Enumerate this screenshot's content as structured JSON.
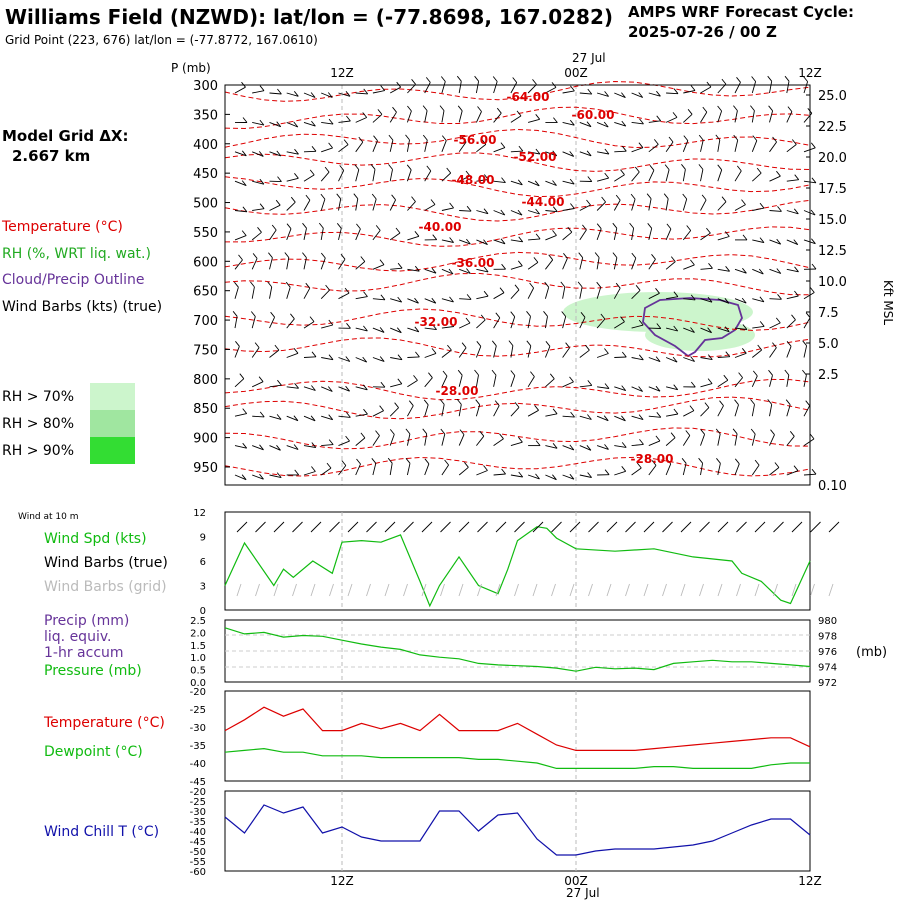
{
  "header": {
    "title": "Williams Field (NZWD):  lat/lon = (-77.8698, 167.0282)",
    "subtitle": "Grid Point (223, 676) lat/lon = (-77.8772, 167.0610)",
    "cycle_label": "AMPS WRF Forecast Cycle:",
    "cycle_value": "2025-07-26 / 00  Z"
  },
  "sidebar": {
    "grid_label": "Model Grid ΔX:",
    "grid_value": "2.667 km",
    "legend_temperature": "Temperature (°C)",
    "legend_rh": "RH (%, WRT liq. wat.)",
    "legend_cloud": "Cloud/Precip Outline",
    "legend_wind": "Wind Barbs (kts) (true)",
    "rh_70": "RH > 70%",
    "rh_80": "RH > 80%",
    "rh_90": "RH > 90%"
  },
  "colors": {
    "temperature": "#dd0000",
    "rh70": "#ccf5cc",
    "rh80": "#a0e6a0",
    "rh90": "#33dd33",
    "cloud": "#663399",
    "wind": "#000000",
    "series_green": "#11bb11",
    "series_red": "#dd0000",
    "series_blue": "#1111aa",
    "grid_barbs": "#bbbbbb"
  },
  "time_axis": {
    "top_labels": [
      "12Z",
      "00Z",
      "12Z"
    ],
    "date_label": "27 Jul",
    "bottom_labels": [
      "12Z",
      "00Z",
      "12Z"
    ]
  },
  "chart_data": [
    {
      "type": "area",
      "name": "cross-section",
      "ylabel_left": "P (mb)",
      "pressure_levels": [
        300,
        350,
        400,
        450,
        500,
        550,
        600,
        650,
        700,
        750,
        800,
        850,
        900,
        950
      ],
      "ylabel_right": "Kft MSL",
      "height_ticks": [
        "25.0",
        "22.5",
        "20.0",
        "17.5",
        "15.0",
        "12.5",
        "10.0",
        "7.5",
        "5.0",
        "2.5",
        "0.10"
      ],
      "temperature_labels": [
        "-64.00",
        "-60.00",
        "-56.00",
        "-52.00",
        "-48.00",
        "-44.00",
        "-40.00",
        "-36.00",
        "-32.00",
        "-28.00",
        "-28.00"
      ],
      "grid": true
    },
    {
      "type": "line",
      "name": "wind at 10 m",
      "corner_label": "Wind at 10 m",
      "legend": [
        "Wind Spd (kts)",
        "Wind Barbs (true)",
        "Wind Barbs (grid)"
      ],
      "y_ticks": [
        "12",
        "9",
        "6",
        "3",
        "0"
      ],
      "ylim": [
        0,
        12
      ],
      "series": [
        {
          "name": "Wind Spd (kts)",
          "x_hours": [
            0,
            2,
            5,
            6,
            7,
            9,
            11,
            12,
            14,
            16,
            18,
            20,
            21,
            22,
            24,
            26,
            28,
            29,
            30,
            32,
            33,
            34,
            36,
            40,
            44,
            48,
            52,
            53,
            55,
            57,
            58,
            60
          ],
          "values": [
            3,
            8.2,
            3,
            5,
            4,
            6,
            4.5,
            8.3,
            8.5,
            8.3,
            9.2,
            3.5,
            0.5,
            3,
            6.5,
            3,
            2,
            5,
            8.5,
            10.2,
            10,
            8.8,
            7.5,
            7.2,
            7.5,
            6.5,
            6,
            4.5,
            3.5,
            1.2,
            0.8,
            6
          ]
        }
      ]
    },
    {
      "type": "line",
      "name": "precip and pressure",
      "legend": [
        "Precip (mm)",
        "liq. equiv.",
        "1-hr accum",
        "Pressure (mb)"
      ],
      "y_ticks_left": [
        "2.5",
        "2.0",
        "1.5",
        "1.0",
        "0.5",
        "0.0"
      ],
      "y_ticks_right": [
        "980",
        "978",
        "976",
        "974",
        "972"
      ],
      "y_unit_right": "(mb)",
      "series": [
        {
          "name": "Pressure (mb)",
          "x_hours": [
            0,
            2,
            4,
            6,
            8,
            10,
            12,
            14,
            16,
            18,
            20,
            22,
            24,
            26,
            28,
            30,
            32,
            34,
            36,
            38,
            40,
            42,
            44,
            46,
            48,
            50,
            52,
            54,
            56,
            58,
            60
          ],
          "values": [
            979,
            978.2,
            978.4,
            977.8,
            978.0,
            977.9,
            977.4,
            976.9,
            976.5,
            976.2,
            975.5,
            975.2,
            975.0,
            974.4,
            974.2,
            974.1,
            974.0,
            973.8,
            973.4,
            973.9,
            973.7,
            973.8,
            973.6,
            974.4,
            974.6,
            974.8,
            974.6,
            974.6,
            974.4,
            974.2,
            974.0
          ]
        }
      ]
    },
    {
      "type": "line",
      "name": "temperature and dewpoint",
      "legend": [
        "Temperature (°C)",
        "Dewpoint (°C)"
      ],
      "y_ticks": [
        "-20",
        "-25",
        "-30",
        "-35",
        "-40",
        "-45"
      ],
      "ylim": [
        -45,
        -20
      ],
      "series": [
        {
          "name": "Temperature (°C)",
          "x_hours": [
            0,
            2,
            4,
            6,
            8,
            10,
            12,
            14,
            16,
            18,
            20,
            22,
            24,
            26,
            28,
            30,
            32,
            34,
            36,
            38,
            40,
            42,
            44,
            46,
            48,
            50,
            52,
            54,
            56,
            58,
            60
          ],
          "values": [
            -31,
            -28,
            -24.5,
            -27,
            -25,
            -31,
            -31,
            -29,
            -30.5,
            -29,
            -31,
            -26.5,
            -31,
            -31,
            -31,
            -29,
            -32,
            -35,
            -36.5,
            -36.5,
            -36.5,
            -36.5,
            -36,
            -35.5,
            -35,
            -34.5,
            -34,
            -33.5,
            -33,
            -33,
            -35.5
          ]
        },
        {
          "name": "Dewpoint (°C)",
          "x_hours": [
            0,
            2,
            4,
            6,
            8,
            10,
            12,
            14,
            16,
            18,
            20,
            22,
            24,
            26,
            28,
            30,
            32,
            34,
            36,
            38,
            40,
            42,
            44,
            46,
            48,
            50,
            52,
            54,
            56,
            58,
            60
          ],
          "values": [
            -37,
            -36.5,
            -36,
            -37,
            -37,
            -38,
            -38,
            -38,
            -38.5,
            -38.5,
            -38.5,
            -38.5,
            -38.5,
            -39,
            -39,
            -39.5,
            -40,
            -41.5,
            -41.5,
            -41.5,
            -41.5,
            -41.5,
            -41,
            -41,
            -41.5,
            -41.5,
            -41.5,
            -41.5,
            -40.5,
            -40,
            -40
          ]
        }
      ]
    },
    {
      "type": "line",
      "name": "wind chill",
      "legend": [
        "Wind Chill T (°C)"
      ],
      "y_ticks": [
        "-20",
        "-25",
        "-30",
        "-35",
        "-40",
        "-45",
        "-50",
        "-55",
        "-60"
      ],
      "ylim": [
        -60,
        -20
      ],
      "series": [
        {
          "name": "Wind Chill T (°C)",
          "x_hours": [
            0,
            2,
            4,
            6,
            8,
            10,
            12,
            14,
            16,
            18,
            20,
            22,
            24,
            26,
            28,
            30,
            32,
            34,
            36,
            38,
            40,
            42,
            44,
            46,
            48,
            50,
            52,
            54,
            56,
            58,
            60
          ],
          "values": [
            -33,
            -41,
            -27,
            -31,
            -28,
            -41,
            -38,
            -43,
            -45,
            -45,
            -45,
            -30,
            -30,
            -40,
            -32,
            -31,
            -44,
            -52,
            -52,
            -50,
            -49,
            -49,
            -49,
            -48,
            -47,
            -45,
            -41,
            -37,
            -34,
            -34,
            -42
          ]
        }
      ]
    }
  ]
}
